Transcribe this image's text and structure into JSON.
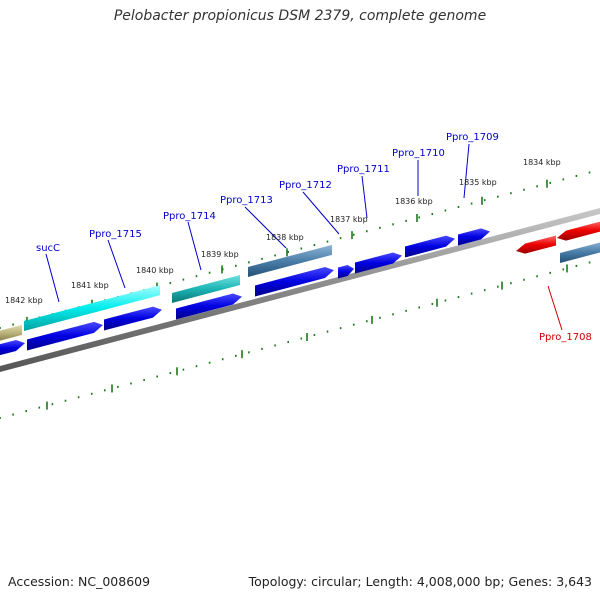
{
  "title": "Pelobacter propionicus DSM 2379, complete genome",
  "footer": {
    "accession": "Accession: NC_008609",
    "meta": "Topology: circular; Length: 4,008,000 bp; Genes: 3,643"
  },
  "colors": {
    "forward_label": "#0000cc",
    "reverse_label": "#cc0000",
    "tick": "#1a7a1a",
    "backbone": "#888888"
  },
  "kbp_labels": [
    "1842 kbp",
    "1841 kbp",
    "1840 kbp",
    "1839 kbp",
    "1838 kbp",
    "1837 kbp",
    "1836 kbp",
    "1835 kbp",
    "1834 kbp"
  ],
  "gene_labels": [
    "sucC",
    "Ppro_1715",
    "Ppro_1714",
    "Ppro_1713",
    "Ppro_1712",
    "Ppro_1711",
    "Ppro_1710",
    "Ppro_1709",
    "Ppro_1708"
  ]
}
